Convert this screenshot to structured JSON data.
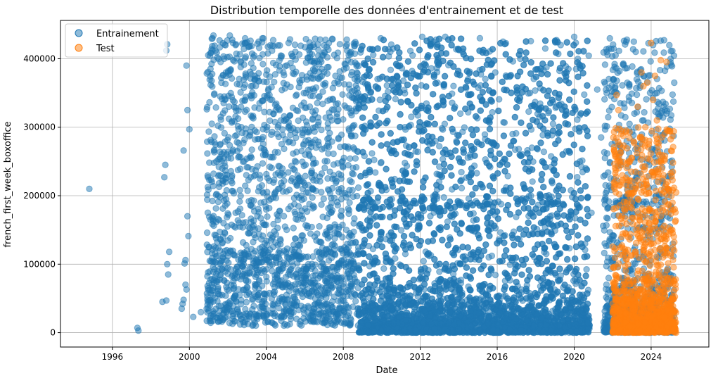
{
  "chart_data": {
    "type": "scatter",
    "title": "Distribution temporelle des données d'entrainement et de test",
    "xlabel": "Date",
    "ylabel": "french_first_week_boxoffice",
    "xlim": [
      1993.3,
      2027.0
    ],
    "ylim": [
      -21000,
      456000
    ],
    "x_ticks": [
      1996,
      2000,
      2004,
      2008,
      2012,
      2016,
      2020,
      2024
    ],
    "y_ticks": [
      0,
      100000,
      200000,
      300000,
      400000
    ],
    "grid": true,
    "legend": "top-left",
    "series": [
      {
        "name": "Entrainement",
        "color": "#1f77b4",
        "x_range": [
          1994.8,
          2025.2
        ],
        "points": [
          [
            1994.8,
            210000
          ],
          [
            1997.3,
            7000
          ],
          [
            1997.35,
            3000
          ],
          [
            1998.6,
            45000
          ],
          [
            1998.7,
            227000
          ],
          [
            1998.75,
            245000
          ],
          [
            1998.8,
            47000
          ],
          [
            1998.85,
            100000
          ],
          [
            1998.9,
            85000
          ],
          [
            1998.95,
            118000
          ],
          [
            1998.8,
            412000
          ],
          [
            1998.85,
            421000
          ],
          [
            1999.6,
            35000
          ],
          [
            1999.65,
            42000
          ],
          [
            1999.7,
            48000
          ],
          [
            1999.7,
            266000
          ],
          [
            1999.75,
            101000
          ],
          [
            1999.8,
            106000
          ],
          [
            1999.8,
            70000
          ],
          [
            1999.85,
            63000
          ],
          [
            1999.85,
            390000
          ],
          [
            1999.9,
            325000
          ],
          [
            1999.9,
            170000
          ],
          [
            1999.95,
            141000
          ],
          [
            2000.0,
            297000
          ],
          [
            2000.2,
            23000
          ],
          [
            2000.6,
            30000
          ],
          [
            2000.9,
            35000
          ],
          [
            2001.0,
            125000
          ],
          [
            2001.1,
            165000
          ],
          [
            2001.2,
            430000
          ],
          [
            2001.25,
            434000
          ],
          [
            2001.4,
            250000
          ],
          [
            2001.5,
            200000
          ],
          [
            2001.6,
            345000
          ],
          [
            2001.8,
            400000
          ],
          [
            2001.9,
            380000
          ],
          [
            2002.1,
            434000
          ],
          [
            2002.4,
            420000
          ],
          [
            2002.7,
            300000
          ],
          [
            2003.2,
            360000
          ],
          [
            2003.6,
            425000
          ],
          [
            2004.3,
            340000
          ],
          [
            2004.8,
            404000
          ],
          [
            2005.5,
            292000
          ],
          [
            2006.1,
            374000
          ],
          [
            2006.8,
            428000
          ],
          [
            2007.4,
            310000
          ],
          [
            2007.9,
            195000
          ],
          [
            2008.2,
            412000
          ],
          [
            2008.7,
            380000
          ],
          [
            2009.1,
            258000
          ],
          [
            2009.5,
            414000
          ],
          [
            2009.9,
            340000
          ],
          [
            2010.3,
            275000
          ],
          [
            2010.8,
            390000
          ],
          [
            2011.2,
            300000
          ],
          [
            2011.6,
            405000
          ],
          [
            2012.1,
            432000
          ],
          [
            2012.5,
            280000
          ],
          [
            2012.9,
            398000
          ],
          [
            2013.3,
            432000
          ],
          [
            2013.8,
            330000
          ],
          [
            2014.2,
            410000
          ],
          [
            2014.6,
            260000
          ],
          [
            2015.1,
            430000
          ],
          [
            2015.5,
            310000
          ],
          [
            2015.9,
            380000
          ],
          [
            2016.3,
            425000
          ],
          [
            2016.8,
            290000
          ],
          [
            2017.2,
            400000
          ],
          [
            2017.7,
            350000
          ],
          [
            2018.1,
            268000
          ],
          [
            2018.5,
            415000
          ],
          [
            2018.9,
            305000
          ],
          [
            2019.3,
            420000
          ],
          [
            2019.7,
            385000
          ],
          [
            2020.0,
            432000
          ],
          [
            2020.05,
            325000
          ],
          [
            2020.1,
            385000
          ],
          [
            2020.3,
            250000
          ],
          [
            2020.6,
            240000
          ],
          [
            2020.9,
            175000
          ],
          [
            2021.2,
            355000
          ],
          [
            2021.4,
            285000
          ],
          [
            2021.6,
            255000
          ],
          [
            2021.7,
            410000
          ],
          [
            2021.9,
            225000
          ],
          [
            2022.1,
            388000
          ],
          [
            2022.15,
            405000
          ],
          [
            2022.4,
            335000
          ],
          [
            2022.8,
            215000
          ],
          [
            2023.1,
            425000
          ],
          [
            2023.2,
            410000
          ],
          [
            2023.6,
            310000
          ],
          [
            2023.9,
            245000
          ],
          [
            2024.1,
            420000
          ],
          [
            2024.3,
            350000
          ],
          [
            2024.5,
            280000
          ],
          [
            2024.7,
            325000
          ],
          [
            2024.8,
            320000
          ],
          [
            2025.0,
            250000
          ],
          [
            2025.2,
            365000
          ]
        ]
      },
      {
        "name": "Test",
        "color": "#ff7f0e",
        "x_range": [
          2022.0,
          2025.3
        ],
        "points": [
          [
            2022.1,
            210000
          ],
          [
            2022.2,
            347000
          ],
          [
            2022.3,
            325000
          ],
          [
            2022.5,
            270000
          ],
          [
            2022.7,
            295000
          ],
          [
            2022.9,
            250000
          ],
          [
            2023.1,
            205000
          ],
          [
            2023.2,
            235000
          ],
          [
            2023.3,
            330000
          ],
          [
            2023.5,
            380000
          ],
          [
            2023.6,
            360000
          ],
          [
            2023.7,
            300000
          ],
          [
            2023.8,
            365000
          ],
          [
            2023.9,
            280000
          ],
          [
            2024.0,
            423000
          ],
          [
            2024.1,
            340000
          ],
          [
            2024.2,
            375000
          ],
          [
            2024.3,
            310000
          ],
          [
            2024.4,
            250000
          ],
          [
            2024.5,
            398000
          ],
          [
            2024.6,
            225000
          ],
          [
            2024.7,
            290000
          ],
          [
            2024.8,
            395000
          ],
          [
            2024.9,
            210000
          ],
          [
            2025.0,
            180000
          ],
          [
            2025.1,
            150000
          ],
          [
            2025.2,
            120000
          ],
          [
            2025.3,
            0
          ]
        ]
      }
    ]
  }
}
